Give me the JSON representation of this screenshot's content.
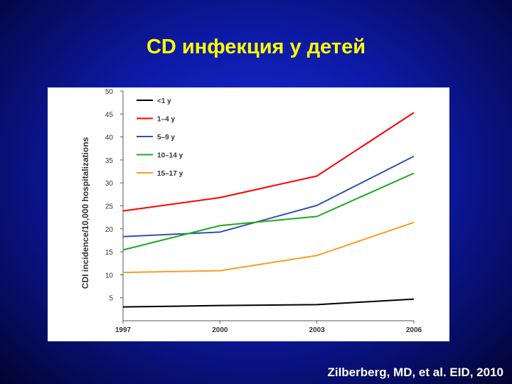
{
  "slide": {
    "title": "CD инфекция у детей",
    "citation": "Zilberberg, MD, et al. EID, 2010"
  },
  "chart_data": {
    "type": "line",
    "title": "",
    "xlabel": "",
    "ylabel": "CDI incidence/10,000 hospitalizations",
    "x": [
      1997,
      2000,
      2003,
      2006
    ],
    "xticks": [
      "1997",
      "2000",
      "2003",
      "2006"
    ],
    "yticks": [
      5,
      10,
      15,
      20,
      25,
      30,
      35,
      40,
      45,
      50
    ],
    "xlim": [
      1997,
      2006
    ],
    "ylim": [
      0,
      50
    ],
    "grid": false,
    "legend_position": "top-left",
    "series": [
      {
        "name": "<1 y",
        "color": "#000000",
        "values": [
          3.0,
          3.3,
          3.5,
          4.7
        ]
      },
      {
        "name": "1–4 y",
        "color": "#ff0000",
        "values": [
          23.9,
          26.8,
          31.5,
          45.3
        ]
      },
      {
        "name": "5–9 y",
        "color": "#2f52a8",
        "values": [
          18.3,
          19.3,
          25.1,
          35.8
        ]
      },
      {
        "name": "10–14 y",
        "color": "#1faa1f",
        "values": [
          15.4,
          20.7,
          22.7,
          32.1
        ]
      },
      {
        "name": "15–17 y",
        "color": "#f5a020",
        "values": [
          10.5,
          10.9,
          14.2,
          21.4
        ]
      }
    ]
  }
}
